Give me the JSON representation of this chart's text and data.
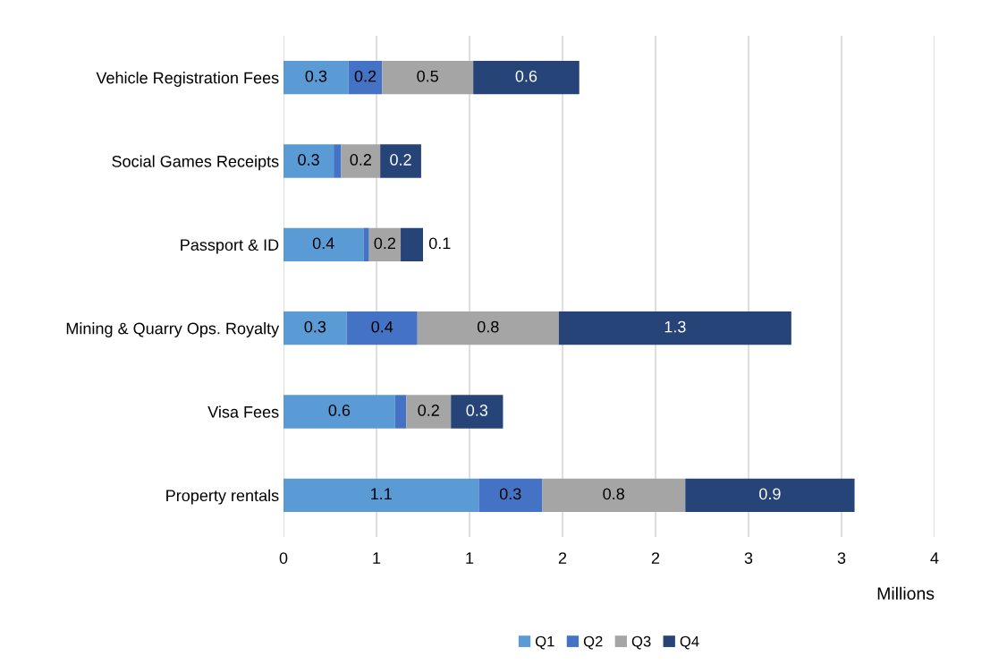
{
  "chart_data": {
    "type": "bar",
    "orientation": "horizontal",
    "stacked": true,
    "categories": [
      "Vehicle Registration Fees",
      "Social Games Receipts",
      "Passport & ID",
      "Mining & Quarry Ops. Royalty",
      "Visa Fees",
      "Property rentals"
    ],
    "series": [
      {
        "name": "Q1",
        "color": "#5b9bd5",
        "values": [
          0.35,
          0.27,
          0.43,
          0.34,
          0.6,
          1.05
        ],
        "value_labels": [
          "0.3",
          "0.3",
          "0.4",
          "0.3",
          "0.6",
          "1.1"
        ]
      },
      {
        "name": "Q2",
        "color": "#4472c4",
        "values": [
          0.18,
          0.04,
          0.03,
          0.38,
          0.06,
          0.34
        ],
        "value_labels": [
          "0.2",
          null,
          null,
          "0.4",
          null,
          "0.3"
        ]
      },
      {
        "name": "Q3",
        "color": "#a5a5a5",
        "values": [
          0.49,
          0.21,
          0.17,
          0.76,
          0.24,
          0.77
        ],
        "value_labels": [
          "0.5",
          "0.2",
          "0.2",
          "0.8",
          "0.2",
          "0.8"
        ]
      },
      {
        "name": "Q4",
        "color": "#264478",
        "values": [
          0.57,
          0.22,
          0.12,
          1.25,
          0.28,
          0.91
        ],
        "value_labels": [
          "0.6",
          "0.2",
          "0.1",
          "1.3",
          "0.3",
          "0.9"
        ]
      }
    ],
    "xlim": [
      0,
      3.5
    ],
    "xticks": [
      0,
      {
        "value": 0.5,
        "label": "1"
      },
      1,
      {
        "value": 1.5,
        "label": "2"
      },
      2,
      {
        "value": 2.5,
        "label": "3"
      },
      3,
      {
        "value": 3.5,
        "label": "4"
      }
    ],
    "xlabel": "Millions",
    "grid": "x",
    "legend": "bottom"
  }
}
